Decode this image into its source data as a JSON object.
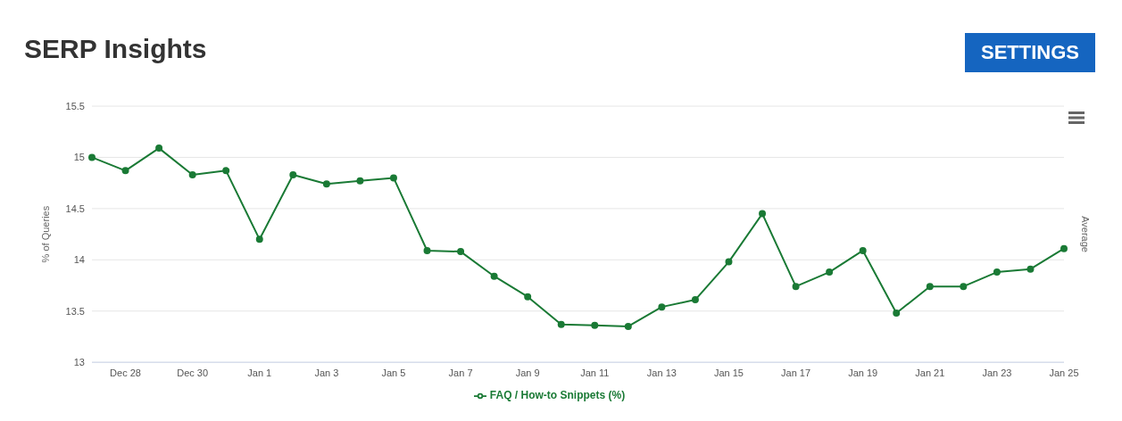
{
  "chart_data": {
    "type": "line",
    "title": "SERP Insights",
    "ylabel": "% of Queries",
    "y2label": "Average",
    "annotations": [
      "SETTINGS"
    ],
    "categories": [
      null,
      "Dec 28",
      null,
      "Dec 30",
      null,
      "Jan 1",
      null,
      "Jan 3",
      null,
      "Jan 5",
      null,
      "Jan 7",
      null,
      "Jan 9",
      null,
      "Jan 11",
      null,
      "Jan 13",
      null,
      "Jan 15",
      null,
      "Jan 17",
      null,
      "Jan 19",
      null,
      "Jan 21",
      null,
      "Jan 23",
      null,
      "Jan 25"
    ],
    "series": [
      {
        "name": "FAQ / How-to Snippets (%)",
        "color": "#1a7a35",
        "values": [
          15.0,
          14.87,
          15.09,
          14.83,
          14.87,
          14.2,
          14.83,
          14.74,
          14.77,
          14.8,
          14.09,
          14.08,
          13.84,
          13.64,
          13.37,
          13.36,
          13.35,
          13.54,
          13.61,
          13.98,
          14.45,
          13.74,
          13.88,
          14.09,
          13.48,
          13.74,
          13.74,
          13.88,
          13.91,
          14.11
        ]
      }
    ],
    "ylim": [
      13,
      15.5
    ],
    "yticks": [
      13,
      13.5,
      14,
      14.5,
      15,
      15.5
    ],
    "grid": "y",
    "legend": "bottom",
    "marker": "circle",
    "line_style": "solid"
  }
}
